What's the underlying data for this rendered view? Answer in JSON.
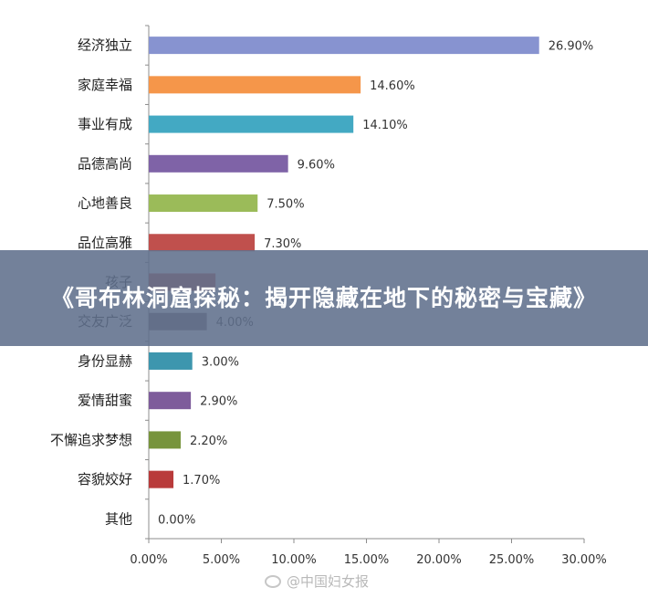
{
  "headline": "《哥布林洞窟探秘：揭开隐藏在地下的秘密与宝藏》",
  "watermark": {
    "text": "@中国妇女报",
    "icon": "weibo-icon"
  },
  "chart_data": {
    "type": "bar",
    "orientation": "horizontal",
    "categories": [
      "经济独立",
      "家庭幸福",
      "事业有成",
      "品德高尚",
      "心地善良",
      "品位高雅",
      "孩子",
      "交友广泛",
      "身份显赫",
      "爱情甜蜜",
      "不懈追求梦想",
      "容貌姣好",
      "其他"
    ],
    "values": [
      26.9,
      14.6,
      14.1,
      9.6,
      7.5,
      7.3,
      4.6,
      4.0,
      3.0,
      2.9,
      2.2,
      1.7,
      0.0
    ],
    "value_labels": [
      "26.90%",
      "14.60%",
      "14.10%",
      "9.60%",
      "7.50%",
      "7.30%",
      "",
      "4.00%",
      "3.00%",
      "2.90%",
      "2.20%",
      "1.70%",
      "0.00%"
    ],
    "colors": [
      "#8793D0",
      "#F5964A",
      "#43A9C3",
      "#7F63A7",
      "#9BBB59",
      "#C0504D",
      "#C0504D",
      "#7F6C70",
      "#3D96AE",
      "#7E5C9B",
      "#77943C",
      "#B93B3B",
      "#7F7F7F"
    ],
    "xlim": [
      0,
      30
    ],
    "xticks": [
      "0.00%",
      "5.00%",
      "10.00%",
      "15.00%",
      "20.00%",
      "25.00%",
      "30.00%"
    ],
    "grid": false,
    "title": "",
    "xlabel": "",
    "ylabel": ""
  }
}
